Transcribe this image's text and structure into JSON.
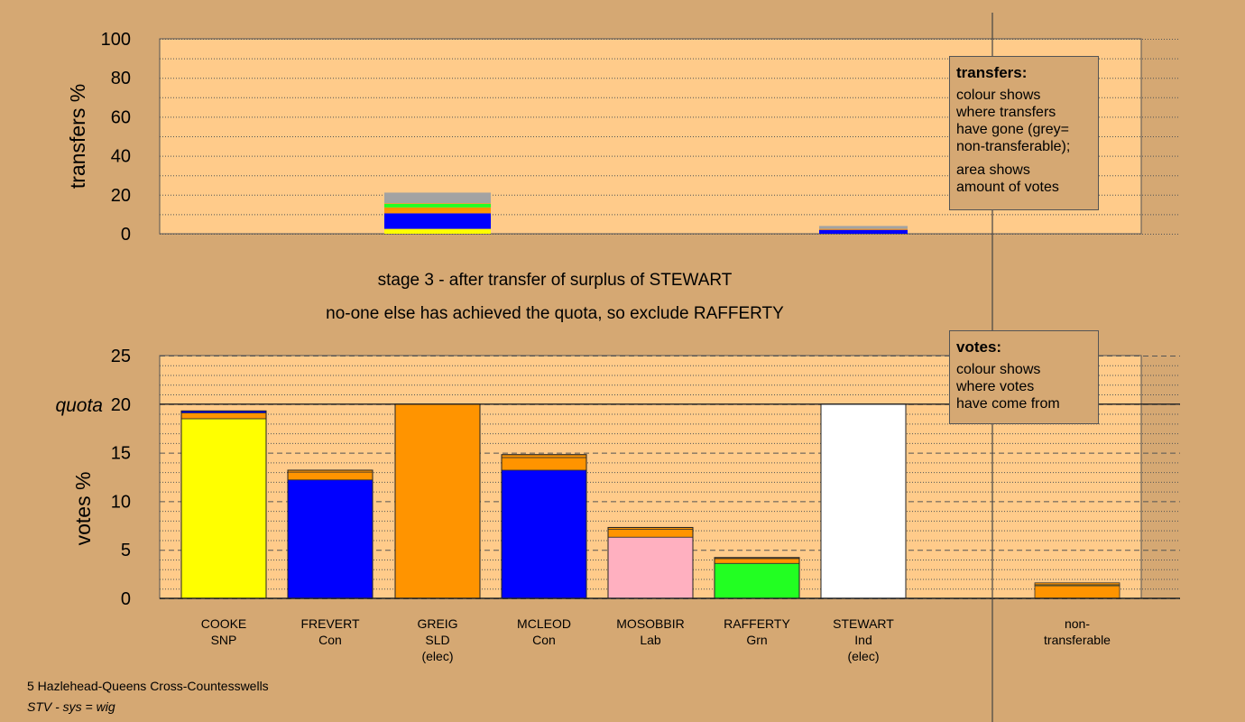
{
  "footer": {
    "ward": "5 Hazlehead-Queens Cross-Countesswells",
    "system": "STV - sys = wig"
  },
  "stage_title": "stage 3 - after transfer of surplus of STEWART",
  "stage_note": "no-one else has achieved the quota, so exclude RAFFERTY",
  "transfers_box": {
    "heading": "transfers:",
    "lines": [
      "colour shows",
      "where transfers",
      "have gone (grey=",
      "non-transferable);"
    ],
    "lines2": [
      "area shows",
      "amount of votes"
    ]
  },
  "votes_box": {
    "heading": "votes:",
    "lines": [
      "colour shows",
      "where votes",
      "have come from"
    ]
  },
  "chart_data": [
    {
      "type": "bar",
      "name": "transfers",
      "ylabel": "transfers %",
      "ylim": [
        0,
        100
      ],
      "yticks": [
        0,
        20,
        40,
        60,
        80,
        100
      ],
      "grid": true,
      "columns": [
        {
          "position": "GREIG",
          "segments": [
            {
              "color": "#ffff00",
              "value": 2.5
            },
            {
              "color": "#0000ff",
              "value": 8
            },
            {
              "color": "#ff9400",
              "value": 0.8
            },
            {
              "color": "#ff9400",
              "value": 2.2
            },
            {
              "color": "#22ff22",
              "value": 1.8
            },
            {
              "color": "#ff9400",
              "value": 0.3
            },
            {
              "color": "#a3a3a3",
              "value": 5.5
            }
          ]
        },
        {
          "position": "STEWART",
          "segments": [
            {
              "color": "#0000ff",
              "value": 2
            },
            {
              "color": "#ff9400",
              "value": 0.5
            },
            {
              "color": "#a3a3a3",
              "value": 1.5
            }
          ]
        }
      ]
    },
    {
      "type": "bar",
      "name": "votes",
      "ylabel": "votes %",
      "ylim": [
        0,
        25
      ],
      "yticks": [
        0,
        5,
        10,
        15,
        20,
        25
      ],
      "quota": 20,
      "quota_label": "quota",
      "grid": true,
      "candidates": [
        {
          "name": "COOKE",
          "party": "SNP",
          "elected": "",
          "segments": [
            {
              "color": "#ffff00",
              "value": 18.5
            },
            {
              "color": "#ff9400",
              "value": 0.6
            },
            {
              "color": "#0000ff",
              "value": 0.2
            }
          ]
        },
        {
          "name": "FREVERT",
          "party": "Con",
          "elected": "",
          "segments": [
            {
              "color": "#0000ff",
              "value": 12.2
            },
            {
              "color": "#ff9400",
              "value": 0.8
            },
            {
              "color": "#ff9400",
              "value": 0.2
            }
          ]
        },
        {
          "name": "GREIG",
          "party": "SLD",
          "elected": "(elec)",
          "segments": [
            {
              "color": "#ff9400",
              "value": 20
            }
          ]
        },
        {
          "name": "MCLEOD",
          "party": "Con",
          "elected": "",
          "segments": [
            {
              "color": "#0000ff",
              "value": 13.2
            },
            {
              "color": "#ff9400",
              "value": 1.3
            },
            {
              "color": "#ff9400",
              "value": 0.3
            }
          ]
        },
        {
          "name": "MOSOBBIR",
          "party": "Lab",
          "elected": "",
          "segments": [
            {
              "color": "#ffb0c0",
              "value": 6.3
            },
            {
              "color": "#ff9400",
              "value": 0.8
            },
            {
              "color": "#ff9400",
              "value": 0.2
            }
          ]
        },
        {
          "name": "RAFFERTY",
          "party": "Grn",
          "elected": "",
          "segments": [
            {
              "color": "#22ff22",
              "value": 3.6
            },
            {
              "color": "#ff9400",
              "value": 0.5
            },
            {
              "color": "#ff9400",
              "value": 0.1
            }
          ]
        },
        {
          "name": "STEWART",
          "party": "Ind",
          "elected": "(elec)",
          "segments": [
            {
              "color": "#ffffff",
              "value": 20
            }
          ]
        }
      ],
      "nontransferable": {
        "label1": "non-",
        "label2": "transferable",
        "segments": [
          {
            "color": "#ff9400",
            "value": 1.3
          },
          {
            "color": "#ffff00",
            "value": 0.1
          },
          {
            "color": "#ff9400",
            "value": 0.2
          }
        ]
      }
    }
  ]
}
